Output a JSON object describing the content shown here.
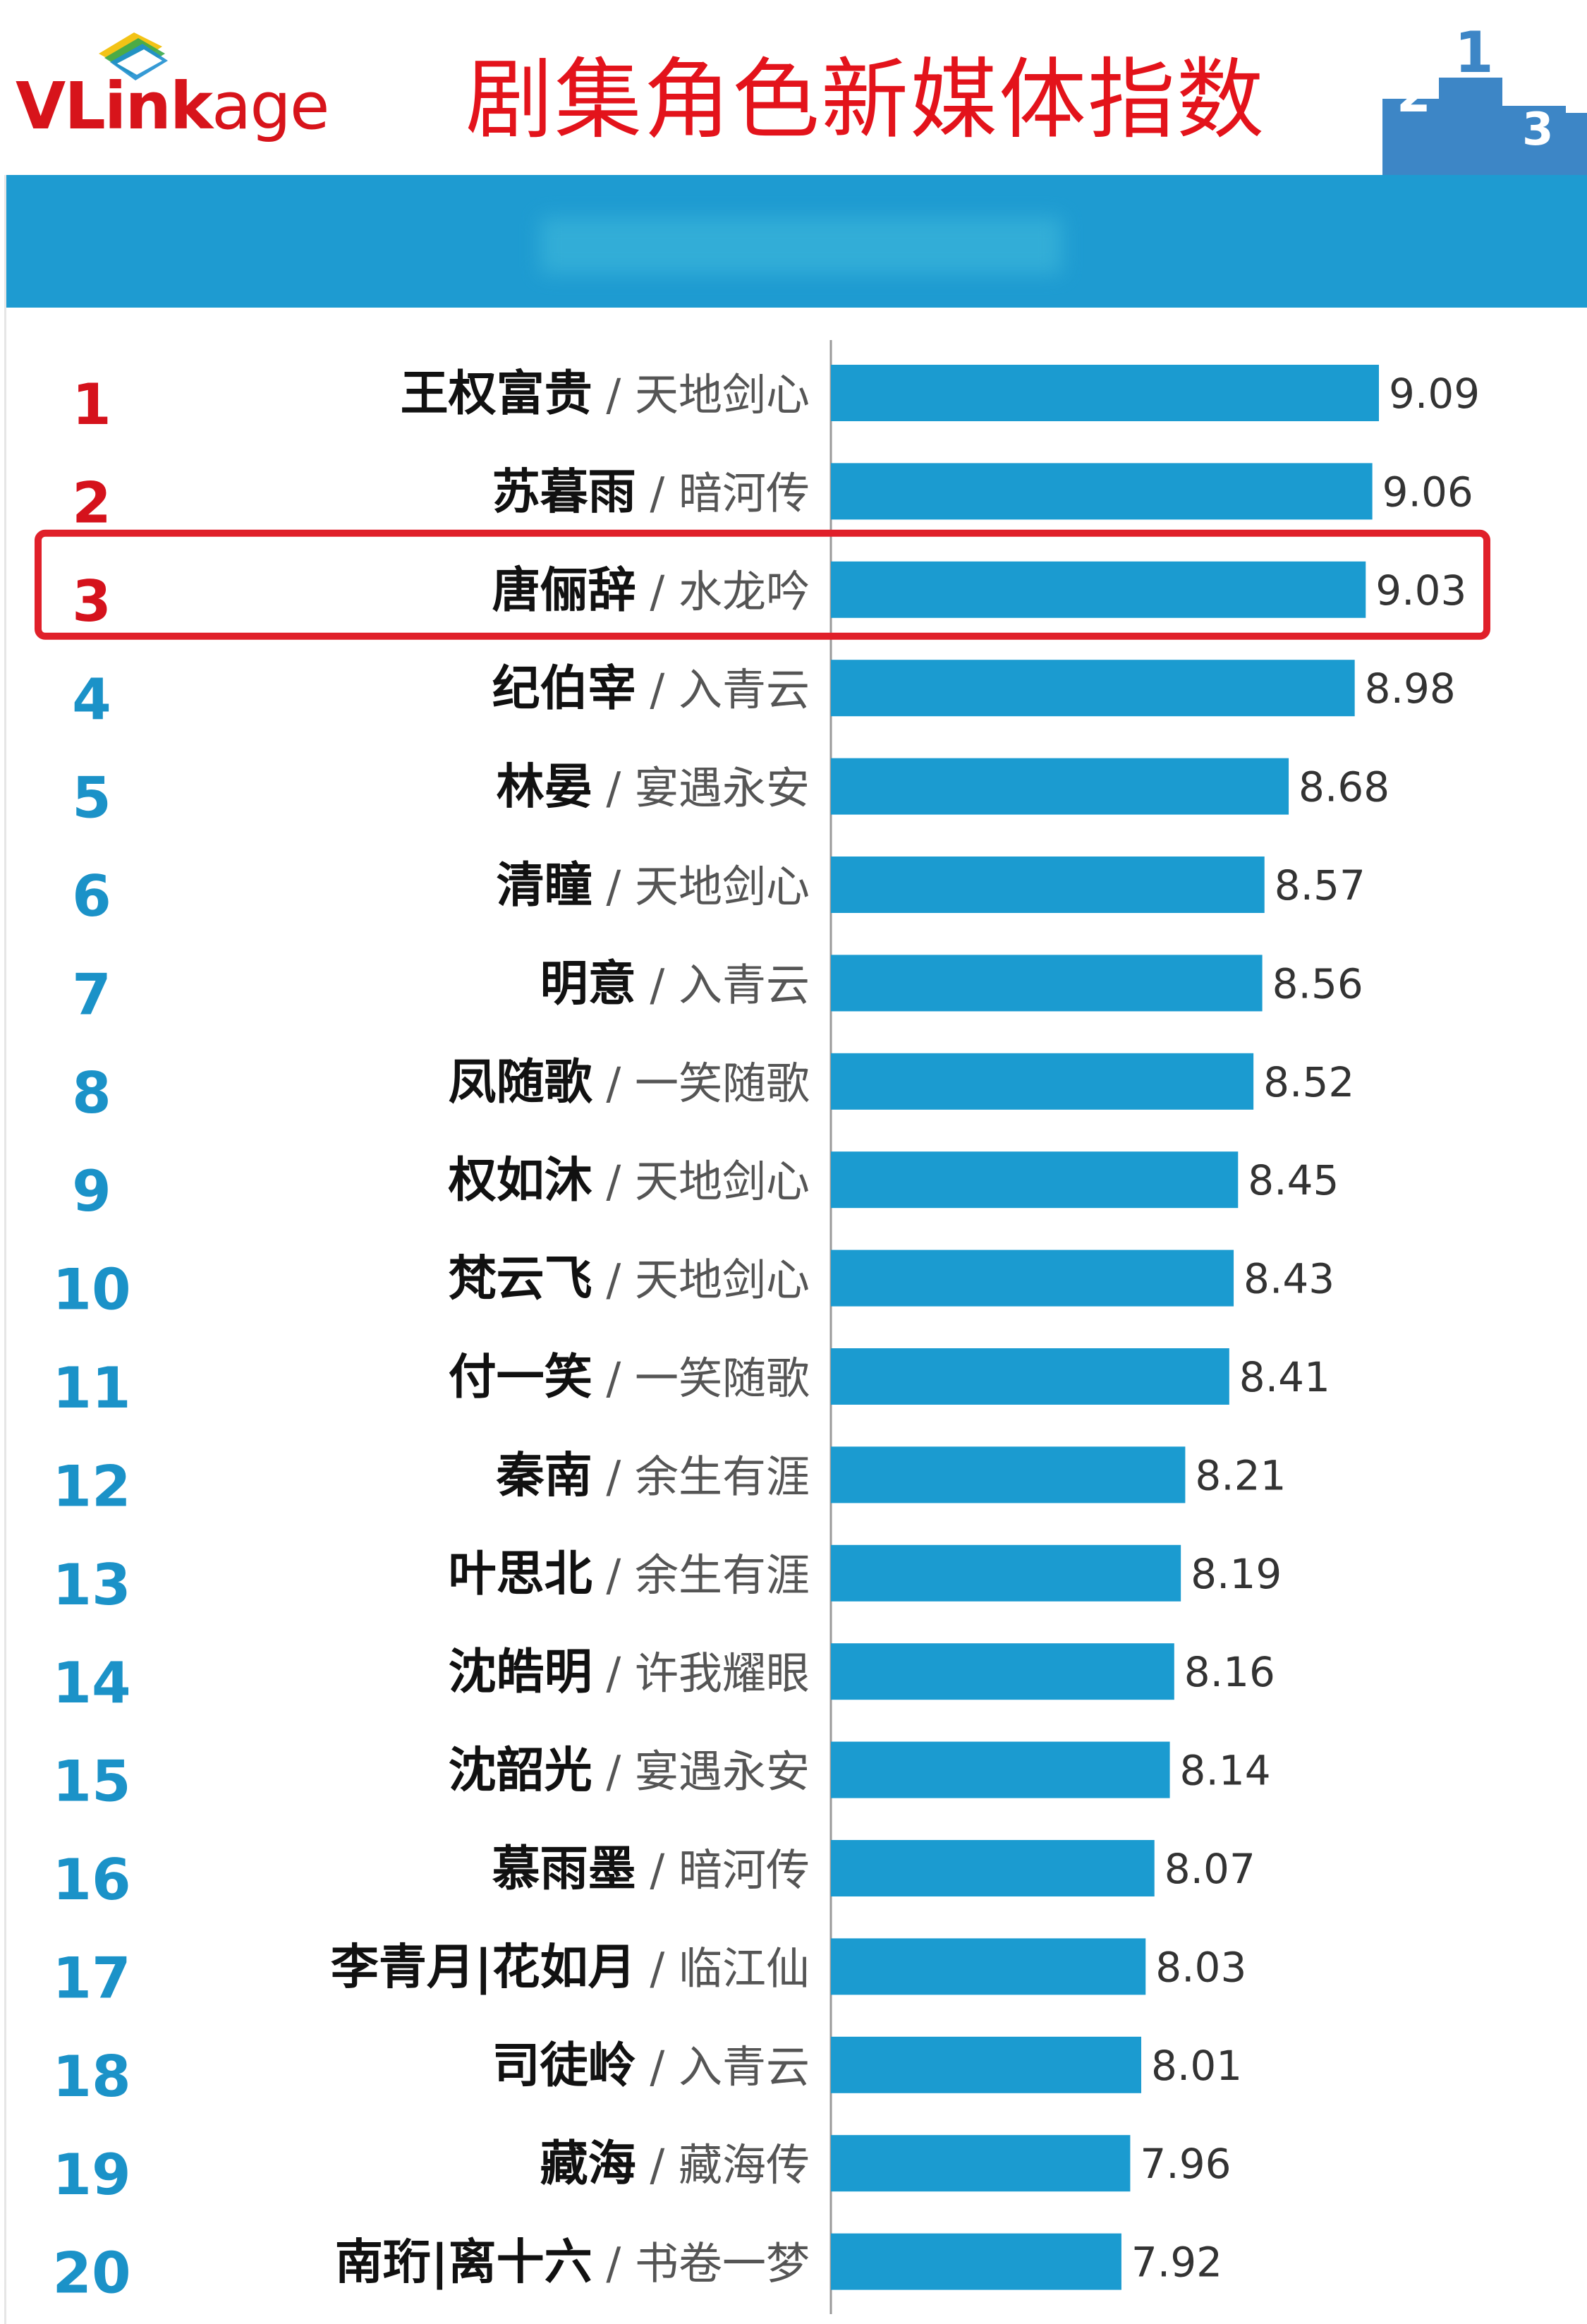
{
  "header": {
    "logo_text_bold": "VLink",
    "logo_text_rest": "age",
    "title": "剧集角色新媒体指数"
  },
  "colors": {
    "bar": "#1b9bd0",
    "rank_top": "#d5121c",
    "rank_rest": "#1b92c8",
    "highlight_border": "#e0202a",
    "axis": "#9a9a9a"
  },
  "highlight_rank": 3,
  "chart_data": {
    "type": "bar",
    "orientation": "horizontal",
    "title": "剧集角色新媒体指数",
    "xlabel": "",
    "ylabel": "",
    "xlim": [
      6.6,
      9.5
    ],
    "grid": false,
    "legend": "none",
    "rows": [
      {
        "rank": "1",
        "name": "王权富贵",
        "drama": "天地剑心",
        "value": 9.09,
        "value_label": "9.09"
      },
      {
        "rank": "2",
        "name": "苏暮雨",
        "drama": "暗河传",
        "value": 9.06,
        "value_label": "9.06"
      },
      {
        "rank": "3",
        "name": "唐俪辞",
        "drama": "水龙吟",
        "value": 9.03,
        "value_label": "9.03"
      },
      {
        "rank": "4",
        "name": "纪伯宰",
        "drama": "入青云",
        "value": 8.98,
        "value_label": "8.98"
      },
      {
        "rank": "5",
        "name": "林晏",
        "drama": "宴遇永安",
        "value": 8.68,
        "value_label": "8.68"
      },
      {
        "rank": "6",
        "name": "清瞳",
        "drama": "天地剑心",
        "value": 8.57,
        "value_label": "8.57"
      },
      {
        "rank": "7",
        "name": "明意",
        "drama": "入青云",
        "value": 8.56,
        "value_label": "8.56"
      },
      {
        "rank": "8",
        "name": "凤随歌",
        "drama": "一笑随歌",
        "value": 8.52,
        "value_label": "8.52"
      },
      {
        "rank": "9",
        "name": "权如沐",
        "drama": "天地剑心",
        "value": 8.45,
        "value_label": "8.45"
      },
      {
        "rank": "10",
        "name": "梵云飞",
        "drama": "天地剑心",
        "value": 8.43,
        "value_label": "8.43"
      },
      {
        "rank": "11",
        "name": "付一笑",
        "drama": "一笑随歌",
        "value": 8.41,
        "value_label": "8.41"
      },
      {
        "rank": "12",
        "name": "秦南",
        "drama": "余生有涯",
        "value": 8.21,
        "value_label": "8.21"
      },
      {
        "rank": "13",
        "name": "叶思北",
        "drama": "余生有涯",
        "value": 8.19,
        "value_label": "8.19"
      },
      {
        "rank": "14",
        "name": "沈皓明",
        "drama": "许我耀眼",
        "value": 8.16,
        "value_label": "8.16"
      },
      {
        "rank": "15",
        "name": "沈韶光",
        "drama": "宴遇永安",
        "value": 8.14,
        "value_label": "8.14"
      },
      {
        "rank": "16",
        "name": "慕雨墨",
        "drama": "暗河传",
        "value": 8.07,
        "value_label": "8.07"
      },
      {
        "rank": "17",
        "name": "李青月|花如月",
        "drama": "临江仙",
        "value": 8.03,
        "value_label": "8.03"
      },
      {
        "rank": "18",
        "name": "司徒岭",
        "drama": "入青云",
        "value": 8.01,
        "value_label": "8.01"
      },
      {
        "rank": "19",
        "name": "藏海",
        "drama": "藏海传",
        "value": 7.96,
        "value_label": "7.96"
      },
      {
        "rank": "20",
        "name": "南珩|离十六",
        "drama": "书卷一梦",
        "value": 7.92,
        "value_label": "7.92"
      }
    ]
  }
}
